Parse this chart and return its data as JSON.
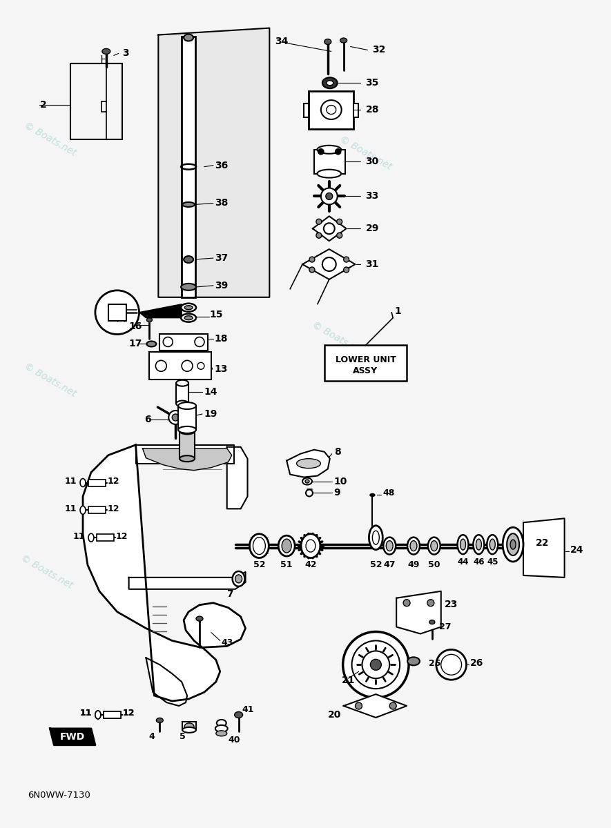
{
  "background_color": "#f5f5f5",
  "diagram_color": "#000000",
  "watermark_color": "#9ecece",
  "watermark_text": "© Boats.net",
  "bottom_label": "6N0WW-7130",
  "box_label_line1": "LOWER UNIT",
  "box_label_line2": "ASSY",
  "figsize": [
    8.85,
    12.0
  ],
  "dpi": 100
}
